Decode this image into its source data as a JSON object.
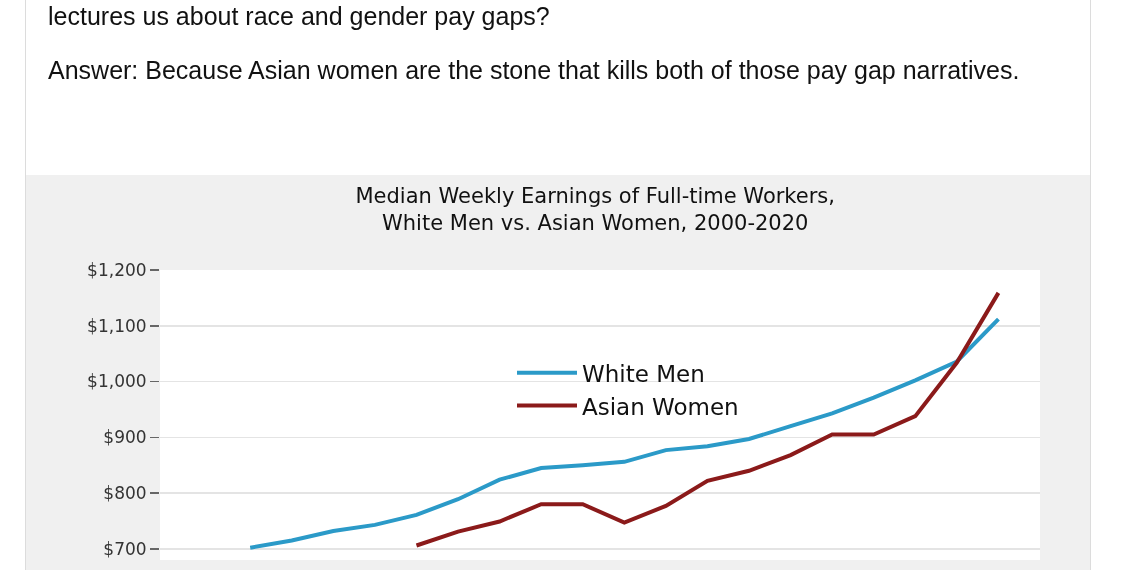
{
  "chart_data": {
    "type": "line",
    "title": "Median Weekly Earnings of Full-time Workers,\nWhite Men vs. Asian Women, 2000-2020",
    "annotations": [
      "lectures us about race and gender pay gaps?",
      "Answer: Because Asian women are the stone that kills both of those pay gap narratives."
    ],
    "categories": [
      null,
      null,
      null,
      null,
      null,
      null,
      null,
      null,
      null,
      null,
      null,
      null,
      null,
      null,
      null,
      null,
      null,
      null,
      null,
      null,
      null
    ],
    "series": [
      {
        "name": "White Men",
        "color": "#2b9ac8",
        "values": [
          null,
          null,
          702,
          715,
          732,
          743,
          761,
          789,
          824,
          845,
          850,
          856,
          877,
          884,
          897,
          920,
          943,
          971,
          1002,
          1036,
          1112
        ]
      },
      {
        "name": "Asian Women",
        "color": "#8b1a1a",
        "values": [
          null,
          null,
          null,
          null,
          null,
          null,
          706,
          731,
          749,
          780,
          780,
          747,
          777,
          822,
          840,
          868,
          905,
          905,
          938,
          1034,
          1159
        ]
      }
    ],
    "ylim": [
      680,
      1200
    ],
    "yticks": [
      {
        "value": 700,
        "label": "$700"
      },
      {
        "value": 800,
        "label": "$800"
      },
      {
        "value": 900,
        "label": "$900"
      },
      {
        "value": 1000,
        "label": "$1,000"
      },
      {
        "value": 1100,
        "label": "$1,100"
      },
      {
        "value": 1200,
        "label": "$1,200"
      }
    ],
    "grid": "y",
    "legend": "top",
    "marker": "none",
    "line_style": "solid",
    "tick_labels": "y"
  }
}
